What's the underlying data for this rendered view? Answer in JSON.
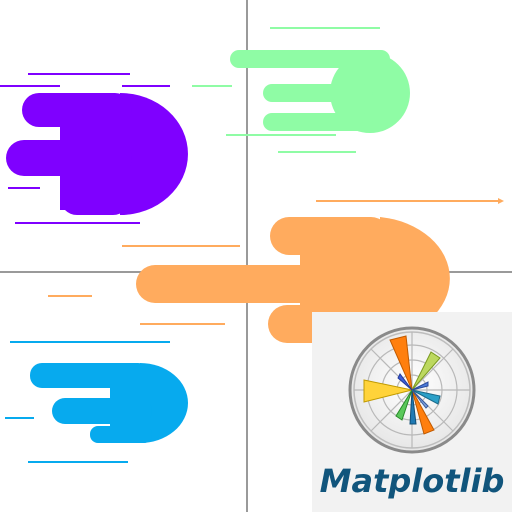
{
  "logo": {
    "wordmark": "Matplotlib",
    "wordmark_color": "#11557c"
  },
  "colors": {
    "purple": "#7f00ff",
    "green": "#8ffca5",
    "orange": "#ffab5e",
    "blue": "#07aaee",
    "grid": "#999999",
    "background": "#ffffff",
    "card": "#f2f2f2"
  },
  "icons": [
    "purple-blob-icon",
    "green-blob-icon",
    "orange-blob-icon",
    "blue-blob-icon",
    "polar-bar-chart-icon"
  ]
}
